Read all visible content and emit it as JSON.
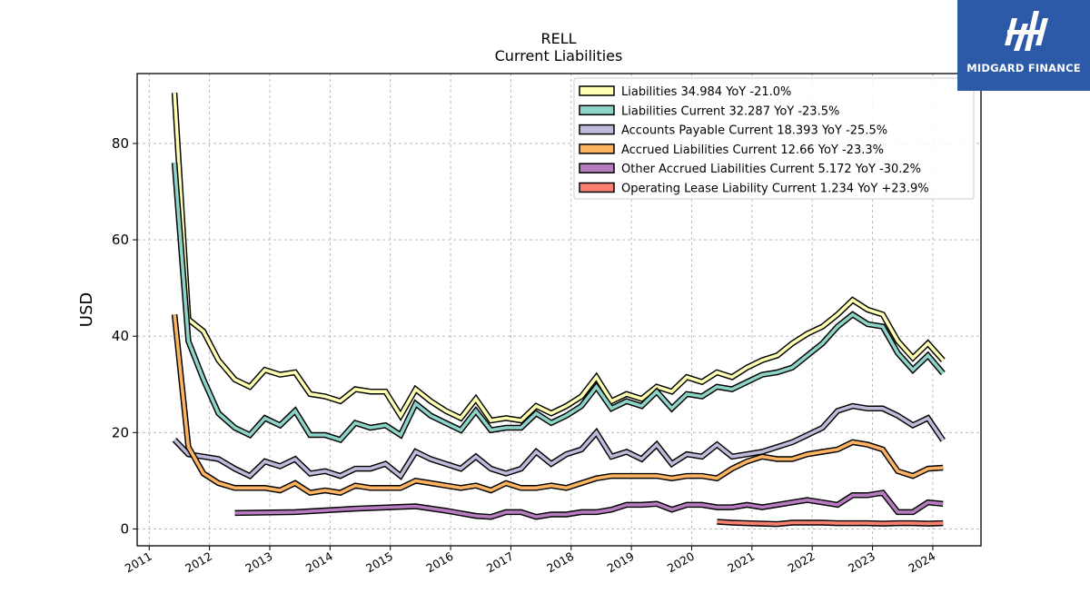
{
  "chart_data": {
    "type": "line",
    "title": "RELL",
    "subtitle": "Current  Liabilities",
    "xlabel": "",
    "ylabel": "USD",
    "xlim": [
      2010.8,
      2024.8
    ],
    "ylim": [
      -3.5,
      94.5
    ],
    "yticks": [
      0,
      20,
      40,
      60,
      80
    ],
    "xticks": [
      2011,
      2012,
      2013,
      2014,
      2015,
      2016,
      2017,
      2018,
      2019,
      2020,
      2021,
      2022,
      2023,
      2024
    ],
    "grid": true,
    "legend_position": "top-right",
    "series": [
      {
        "name": "Liabilities  34.984 YoY -21.0%",
        "color": "#ffffb3",
        "points": [
          [
            2011.42,
            90.5
          ],
          [
            2011.65,
            43.5
          ],
          [
            2011.9,
            41.0
          ],
          [
            2012.15,
            35.0
          ],
          [
            2012.42,
            31.0
          ],
          [
            2012.67,
            29.5
          ],
          [
            2012.92,
            33.0
          ],
          [
            2013.17,
            32.0
          ],
          [
            2013.42,
            32.5
          ],
          [
            2013.67,
            28.0
          ],
          [
            2013.92,
            27.5
          ],
          [
            2014.17,
            26.5
          ],
          [
            2014.42,
            29.0
          ],
          [
            2014.67,
            28.5
          ],
          [
            2014.92,
            28.5
          ],
          [
            2015.17,
            23.5
          ],
          [
            2015.42,
            29.0
          ],
          [
            2015.67,
            26.5
          ],
          [
            2015.92,
            24.5
          ],
          [
            2016.17,
            23.0
          ],
          [
            2016.42,
            27.0
          ],
          [
            2016.67,
            22.5
          ],
          [
            2016.92,
            23.0
          ],
          [
            2017.17,
            22.5
          ],
          [
            2017.42,
            25.5
          ],
          [
            2017.67,
            24.0
          ],
          [
            2017.92,
            25.5
          ],
          [
            2018.17,
            27.5
          ],
          [
            2018.42,
            31.5
          ],
          [
            2018.67,
            26.5
          ],
          [
            2018.92,
            28.0
          ],
          [
            2019.17,
            27.0
          ],
          [
            2019.42,
            29.5
          ],
          [
            2019.67,
            28.5
          ],
          [
            2019.92,
            31.5
          ],
          [
            2020.17,
            30.5
          ],
          [
            2020.42,
            32.5
          ],
          [
            2020.67,
            31.5
          ],
          [
            2020.92,
            33.5
          ],
          [
            2021.17,
            35.0
          ],
          [
            2021.42,
            36.0
          ],
          [
            2021.67,
            38.5
          ],
          [
            2021.92,
            40.5
          ],
          [
            2022.17,
            42.0
          ],
          [
            2022.42,
            44.5
          ],
          [
            2022.67,
            47.5
          ],
          [
            2022.92,
            45.5
          ],
          [
            2023.17,
            44.5
          ],
          [
            2023.42,
            39.0
          ],
          [
            2023.67,
            35.5
          ],
          [
            2023.92,
            38.5
          ],
          [
            2024.17,
            35.0
          ]
        ]
      },
      {
        "name": "Liabilities Current  32.287 YoY -23.5%",
        "color": "#8dd3c7",
        "points": [
          [
            2011.42,
            76.0
          ],
          [
            2011.65,
            39.0
          ],
          [
            2011.9,
            31.0
          ],
          [
            2012.15,
            24.0
          ],
          [
            2012.42,
            21.0
          ],
          [
            2012.67,
            19.5
          ],
          [
            2012.92,
            23.0
          ],
          [
            2013.17,
            21.5
          ],
          [
            2013.42,
            24.5
          ],
          [
            2013.67,
            19.5
          ],
          [
            2013.92,
            19.5
          ],
          [
            2014.17,
            18.5
          ],
          [
            2014.42,
            22.0
          ],
          [
            2014.67,
            21.0
          ],
          [
            2014.92,
            21.5
          ],
          [
            2015.17,
            19.5
          ],
          [
            2015.42,
            26.0
          ],
          [
            2015.67,
            23.5
          ],
          [
            2015.92,
            22.0
          ],
          [
            2016.17,
            20.5
          ],
          [
            2016.42,
            24.5
          ],
          [
            2016.67,
            20.5
          ],
          [
            2016.92,
            21.0
          ],
          [
            2017.17,
            21.0
          ],
          [
            2017.42,
            24.0
          ],
          [
            2017.67,
            22.0
          ],
          [
            2017.92,
            23.5
          ],
          [
            2018.17,
            25.5
          ],
          [
            2018.42,
            29.5
          ],
          [
            2018.67,
            25.0
          ],
          [
            2018.92,
            26.5
          ],
          [
            2019.17,
            25.5
          ],
          [
            2019.42,
            28.5
          ],
          [
            2019.67,
            25.0
          ],
          [
            2019.92,
            28.0
          ],
          [
            2020.17,
            27.5
          ],
          [
            2020.42,
            29.5
          ],
          [
            2020.67,
            29.0
          ],
          [
            2020.92,
            30.5
          ],
          [
            2021.17,
            32.0
          ],
          [
            2021.42,
            32.5
          ],
          [
            2021.67,
            33.5
          ],
          [
            2021.92,
            36.0
          ],
          [
            2022.17,
            38.5
          ],
          [
            2022.42,
            42.0
          ],
          [
            2022.67,
            44.5
          ],
          [
            2022.92,
            42.5
          ],
          [
            2023.17,
            42.0
          ],
          [
            2023.42,
            36.5
          ],
          [
            2023.67,
            33.0
          ],
          [
            2023.92,
            36.0
          ],
          [
            2024.17,
            32.3
          ]
        ]
      },
      {
        "name": "Accounts Payable Current  18.393 YoY -25.5%",
        "color": "#bebada",
        "points": [
          [
            2011.42,
            18.5
          ],
          [
            2011.65,
            15.5
          ],
          [
            2011.9,
            15.0
          ],
          [
            2012.15,
            14.5
          ],
          [
            2012.42,
            12.5
          ],
          [
            2012.67,
            11.0
          ],
          [
            2012.92,
            14.0
          ],
          [
            2013.17,
            13.0
          ],
          [
            2013.42,
            14.5
          ],
          [
            2013.67,
            11.5
          ],
          [
            2013.92,
            12.0
          ],
          [
            2014.17,
            11.0
          ],
          [
            2014.42,
            12.5
          ],
          [
            2014.67,
            12.5
          ],
          [
            2014.92,
            13.5
          ],
          [
            2015.17,
            11.0
          ],
          [
            2015.42,
            16.0
          ],
          [
            2015.67,
            14.5
          ],
          [
            2015.92,
            13.5
          ],
          [
            2016.17,
            12.5
          ],
          [
            2016.42,
            15.0
          ],
          [
            2016.67,
            12.5
          ],
          [
            2016.92,
            11.5
          ],
          [
            2017.17,
            12.5
          ],
          [
            2017.42,
            16.0
          ],
          [
            2017.67,
            13.5
          ],
          [
            2017.92,
            15.5
          ],
          [
            2018.17,
            16.5
          ],
          [
            2018.42,
            20.0
          ],
          [
            2018.67,
            15.0
          ],
          [
            2018.92,
            16.0
          ],
          [
            2019.17,
            14.5
          ],
          [
            2019.42,
            17.5
          ],
          [
            2019.67,
            13.5
          ],
          [
            2019.92,
            15.5
          ],
          [
            2020.17,
            15.0
          ],
          [
            2020.42,
            17.5
          ],
          [
            2020.67,
            15.0
          ],
          [
            2020.92,
            15.5
          ],
          [
            2021.17,
            16.0
          ],
          [
            2021.42,
            17.0
          ],
          [
            2021.67,
            18.0
          ],
          [
            2021.92,
            19.5
          ],
          [
            2022.17,
            21.0
          ],
          [
            2022.42,
            24.5
          ],
          [
            2022.67,
            25.5
          ],
          [
            2022.92,
            25.0
          ],
          [
            2023.17,
            25.0
          ],
          [
            2023.42,
            23.5
          ],
          [
            2023.67,
            21.5
          ],
          [
            2023.92,
            23.0
          ],
          [
            2024.17,
            18.4
          ]
        ]
      },
      {
        "name": "Accrued Liabilities Current  12.66 YoY -23.3%",
        "color": "#fdb462",
        "points": [
          [
            2011.42,
            44.5
          ],
          [
            2011.65,
            17.0
          ],
          [
            2011.9,
            11.5
          ],
          [
            2012.15,
            9.5
          ],
          [
            2012.42,
            8.5
          ],
          [
            2012.67,
            8.5
          ],
          [
            2012.92,
            8.5
          ],
          [
            2013.17,
            8.0
          ],
          [
            2013.42,
            9.5
          ],
          [
            2013.67,
            7.5
          ],
          [
            2013.92,
            8.0
          ],
          [
            2014.17,
            7.5
          ],
          [
            2014.42,
            9.0
          ],
          [
            2014.67,
            8.5
          ],
          [
            2014.92,
            8.5
          ],
          [
            2015.17,
            8.5
          ],
          [
            2015.42,
            10.0
          ],
          [
            2015.67,
            9.5
          ],
          [
            2015.92,
            9.0
          ],
          [
            2016.17,
            8.5
          ],
          [
            2016.42,
            9.0
          ],
          [
            2016.67,
            8.0
          ],
          [
            2016.92,
            9.5
          ],
          [
            2017.17,
            8.5
          ],
          [
            2017.42,
            8.5
          ],
          [
            2017.67,
            9.0
          ],
          [
            2017.92,
            8.5
          ],
          [
            2018.17,
            9.5
          ],
          [
            2018.42,
            10.5
          ],
          [
            2018.67,
            11.0
          ],
          [
            2018.92,
            11.0
          ],
          [
            2019.17,
            11.0
          ],
          [
            2019.42,
            11.0
          ],
          [
            2019.67,
            10.5
          ],
          [
            2019.92,
            11.0
          ],
          [
            2020.17,
            11.0
          ],
          [
            2020.42,
            10.5
          ],
          [
            2020.67,
            12.5
          ],
          [
            2020.92,
            14.0
          ],
          [
            2021.17,
            15.0
          ],
          [
            2021.42,
            14.5
          ],
          [
            2021.67,
            14.5
          ],
          [
            2021.92,
            15.5
          ],
          [
            2022.17,
            16.0
          ],
          [
            2022.42,
            16.5
          ],
          [
            2022.67,
            18.0
          ],
          [
            2022.92,
            17.5
          ],
          [
            2023.17,
            16.5
          ],
          [
            2023.42,
            12.0
          ],
          [
            2023.67,
            11.0
          ],
          [
            2023.92,
            12.5
          ],
          [
            2024.17,
            12.7
          ]
        ]
      },
      {
        "name": "Other Accrued Liabilities Current  5.172 YoY -30.2%",
        "color": "#b77cbf",
        "points": [
          [
            2012.42,
            3.3
          ],
          [
            2013.42,
            3.5
          ],
          [
            2014.42,
            4.2
          ],
          [
            2015.42,
            4.7
          ],
          [
            2015.92,
            3.8
          ],
          [
            2016.42,
            2.7
          ],
          [
            2016.67,
            2.5
          ],
          [
            2016.92,
            3.5
          ],
          [
            2017.17,
            3.5
          ],
          [
            2017.42,
            2.5
          ],
          [
            2017.67,
            3.0
          ],
          [
            2017.92,
            3.0
          ],
          [
            2018.17,
            3.5
          ],
          [
            2018.42,
            3.5
          ],
          [
            2018.67,
            4.0
          ],
          [
            2018.92,
            5.0
          ],
          [
            2019.17,
            5.0
          ],
          [
            2019.42,
            5.2
          ],
          [
            2019.67,
            4.0
          ],
          [
            2019.92,
            5.0
          ],
          [
            2020.17,
            5.0
          ],
          [
            2020.42,
            4.5
          ],
          [
            2020.67,
            4.5
          ],
          [
            2020.92,
            5.0
          ],
          [
            2021.17,
            4.5
          ],
          [
            2021.42,
            5.0
          ],
          [
            2021.67,
            5.5
          ],
          [
            2021.92,
            6.0
          ],
          [
            2022.17,
            5.5
          ],
          [
            2022.42,
            5.0
          ],
          [
            2022.67,
            7.0
          ],
          [
            2022.92,
            7.0
          ],
          [
            2023.17,
            7.5
          ],
          [
            2023.42,
            3.5
          ],
          [
            2023.67,
            3.5
          ],
          [
            2023.92,
            5.5
          ],
          [
            2024.17,
            5.2
          ]
        ]
      },
      {
        "name": "Operating Lease Liability Current  1.234 YoY +23.9%",
        "color": "#fb8072",
        "points": [
          [
            2020.42,
            1.5
          ],
          [
            2020.67,
            1.3
          ],
          [
            2020.92,
            1.2
          ],
          [
            2021.17,
            1.1
          ],
          [
            2021.42,
            1.0
          ],
          [
            2021.67,
            1.3
          ],
          [
            2021.92,
            1.3
          ],
          [
            2022.17,
            1.3
          ],
          [
            2022.42,
            1.2
          ],
          [
            2022.67,
            1.2
          ],
          [
            2022.92,
            1.2
          ],
          [
            2023.17,
            1.1
          ],
          [
            2023.42,
            1.2
          ],
          [
            2023.67,
            1.2
          ],
          [
            2023.92,
            1.1
          ],
          [
            2024.17,
            1.2
          ]
        ]
      }
    ]
  },
  "logo": {
    "text": "MIDGARD FINANCE",
    "icon": "midgard-logo-mark",
    "background": "#2c5aa8"
  }
}
